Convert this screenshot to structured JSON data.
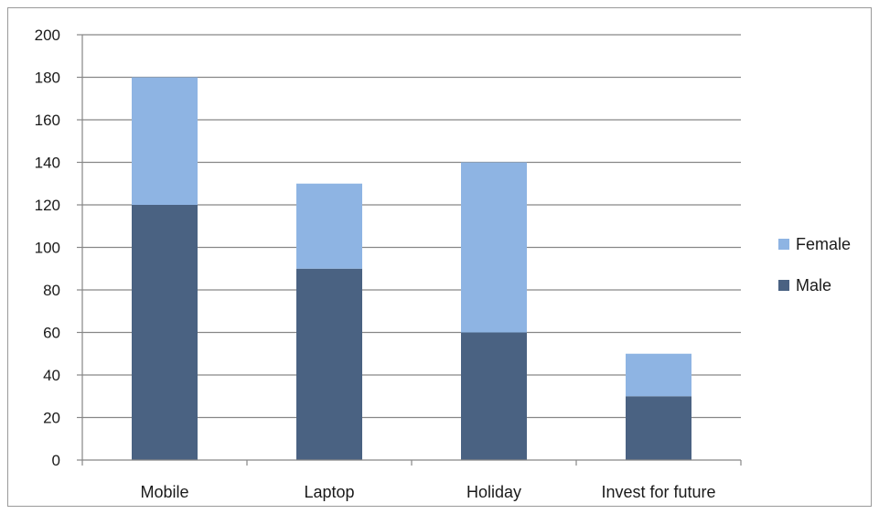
{
  "chart_data": {
    "type": "bar",
    "stacked": true,
    "categories": [
      "Mobile",
      "Laptop",
      "Holiday",
      "Invest for future"
    ],
    "series": [
      {
        "name": "Male",
        "values": [
          120,
          90,
          60,
          30
        ],
        "color": "#4a6282"
      },
      {
        "name": "Female",
        "values": [
          60,
          40,
          80,
          20
        ],
        "color": "#8eb4e3"
      }
    ],
    "ylim": [
      0,
      200
    ],
    "ytick_step": 20,
    "yticks": [
      "0",
      "20",
      "40",
      "60",
      "80",
      "100",
      "120",
      "140",
      "160",
      "180",
      "200"
    ],
    "grid": true,
    "legend": {
      "position": "right",
      "order": [
        "Female",
        "Male"
      ]
    },
    "title": "",
    "xlabel": "",
    "ylabel": ""
  }
}
